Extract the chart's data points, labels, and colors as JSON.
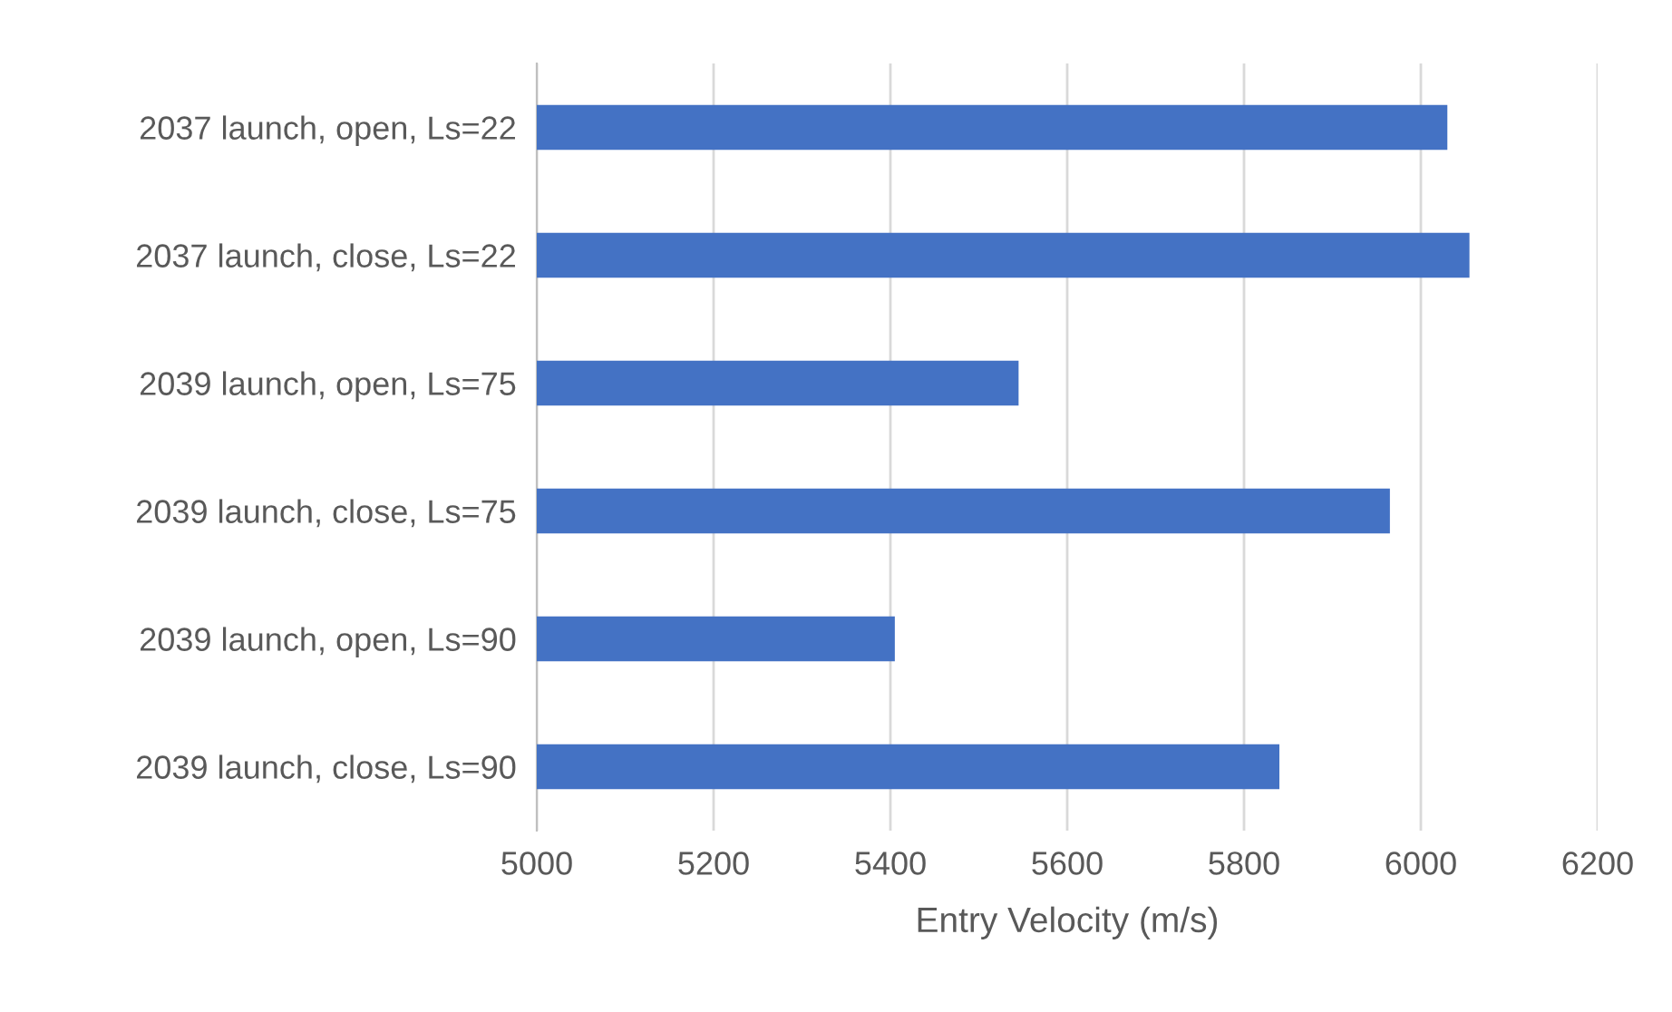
{
  "chart_data": {
    "type": "bar",
    "orientation": "horizontal",
    "xlabel": "Entry Velocity (m/s)",
    "categories": [
      "2037 launch, open, Ls=22",
      "2037 launch, close, Ls=22",
      "2039 launch, open, Ls=75",
      "2039 launch, close, Ls=75",
      "2039 launch, open, Ls=90",
      "2039 launch, close, Ls=90"
    ],
    "values": [
      6030,
      6055,
      5545,
      5965,
      5405,
      5840
    ],
    "color": "#4472c4",
    "xlim": [
      5000,
      6200
    ],
    "xticks": [
      5000,
      5200,
      5400,
      5600,
      5800,
      6000,
      6200
    ],
    "grid": "x"
  }
}
